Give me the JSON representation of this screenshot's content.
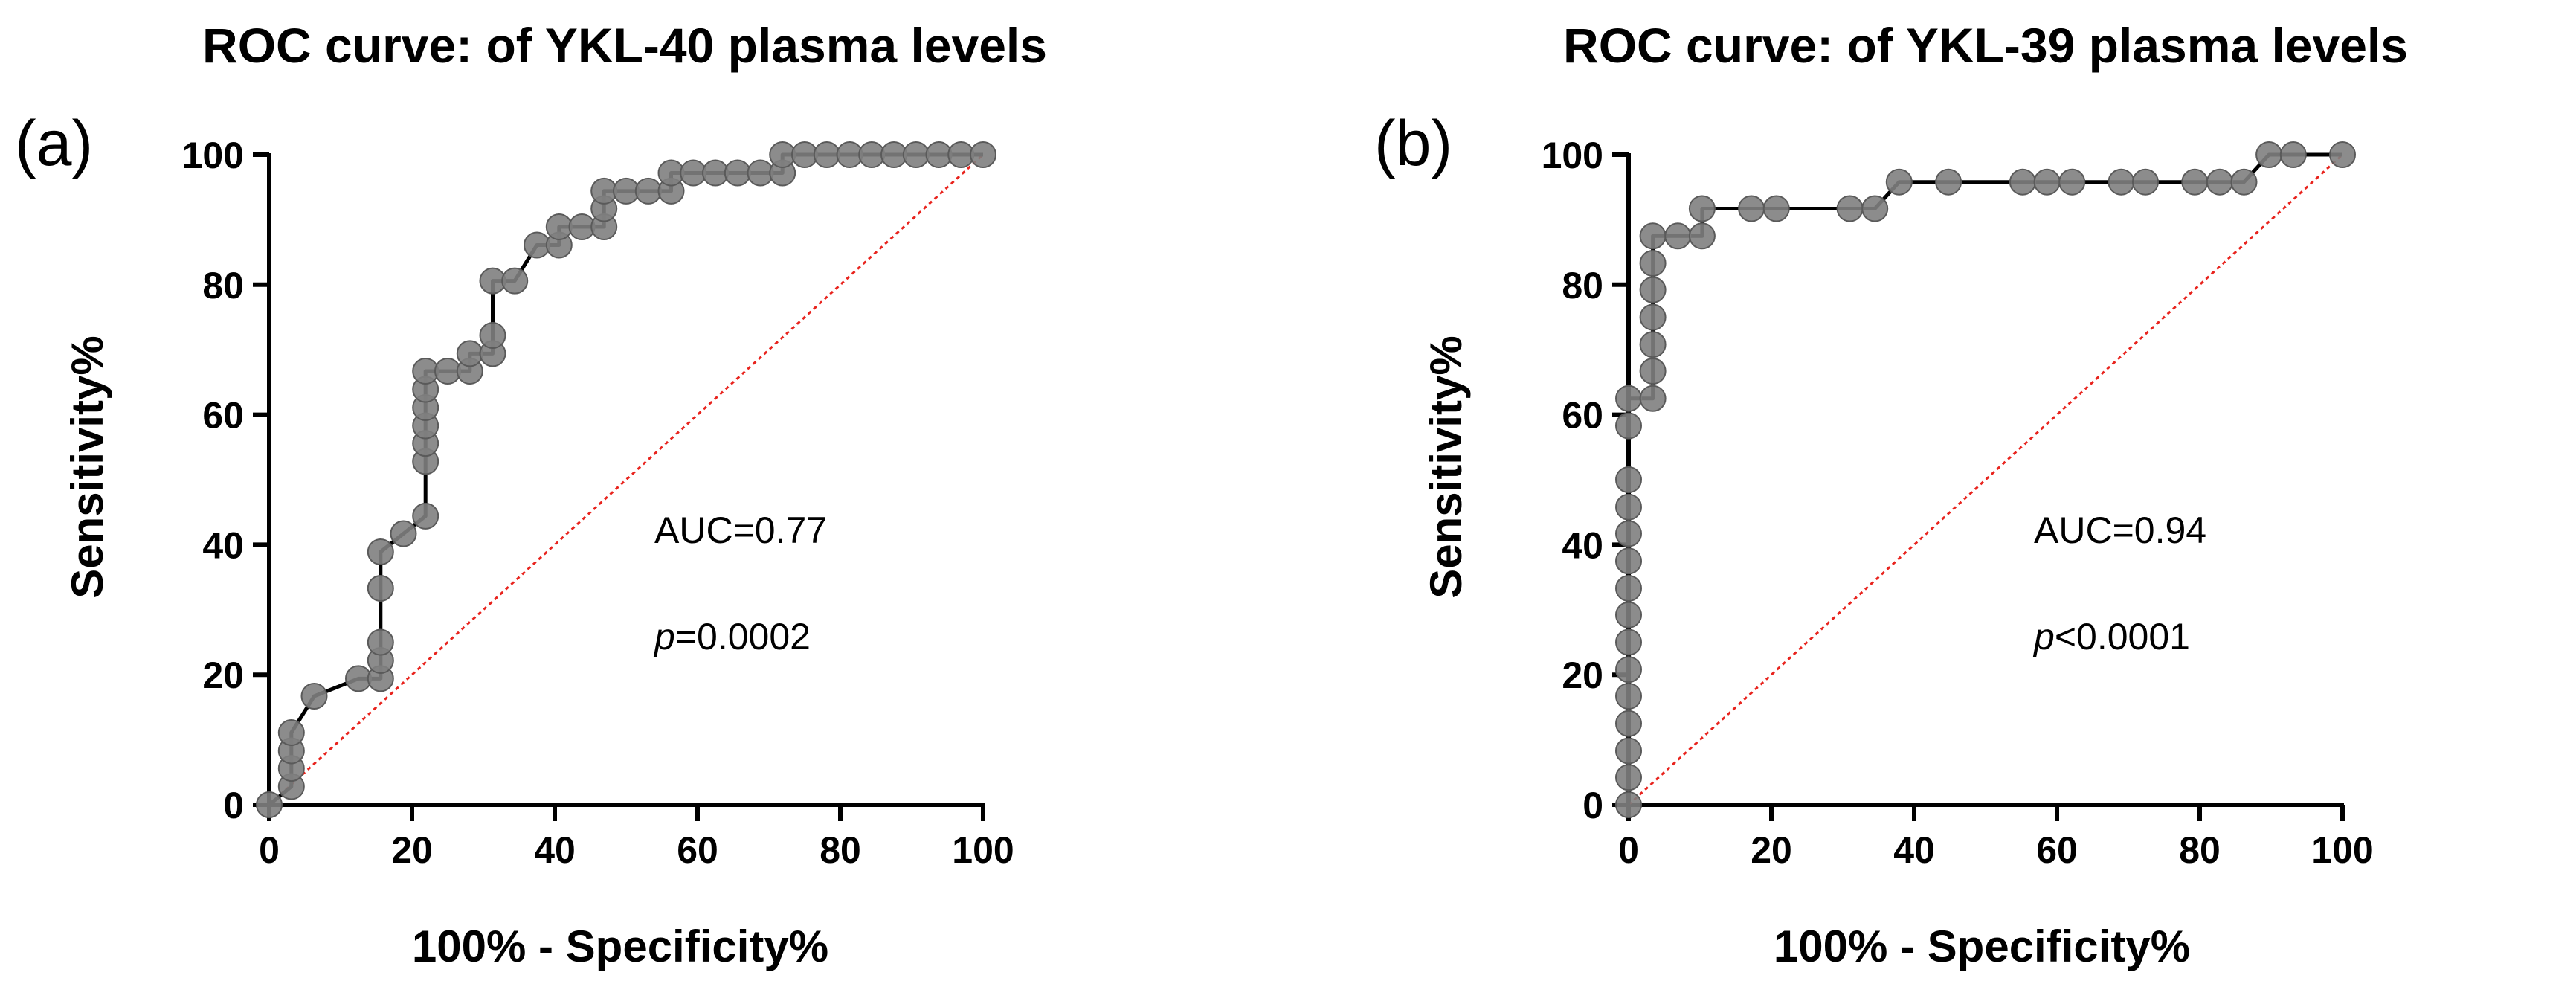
{
  "chart_data": [
    {
      "type": "line",
      "panel_label": "(a)",
      "title": "ROC curve: of YKL-40 plasma levels",
      "xlabel": "100% - Specificity%",
      "ylabel": "Sensitivity%",
      "xlim": [
        0,
        100
      ],
      "ylim": [
        0,
        100
      ],
      "xticks": [
        "0",
        "20",
        "40",
        "60",
        "80",
        "100"
      ],
      "yticks": [
        "0",
        "20",
        "40",
        "60",
        "80",
        "100"
      ],
      "auc_text": "AUC=0.77",
      "p_symbol": "p",
      "p_text": "=0.0002",
      "series": [
        {
          "name": "ROC",
          "points": [
            [
              0,
              0
            ],
            [
              3.1,
              2.8
            ],
            [
              3.1,
              5.6
            ],
            [
              3.1,
              8.3
            ],
            [
              3.1,
              11.1
            ],
            [
              6.3,
              16.7
            ],
            [
              12.5,
              19.4
            ],
            [
              15.6,
              19.4
            ],
            [
              15.6,
              22.2
            ],
            [
              15.6,
              25
            ],
            [
              15.6,
              33.3
            ],
            [
              15.6,
              38.9
            ],
            [
              18.8,
              41.7
            ],
            [
              21.9,
              44.4
            ],
            [
              21.9,
              52.8
            ],
            [
              21.9,
              55.6
            ],
            [
              21.9,
              58.3
            ],
            [
              21.9,
              61.1
            ],
            [
              21.9,
              63.9
            ],
            [
              21.9,
              66.7
            ],
            [
              25,
              66.7
            ],
            [
              28.1,
              66.7
            ],
            [
              28.1,
              69.4
            ],
            [
              31.3,
              69.4
            ],
            [
              31.3,
              72.2
            ],
            [
              31.3,
              80.6
            ],
            [
              34.4,
              80.6
            ],
            [
              37.5,
              86.1
            ],
            [
              40.6,
              86.1
            ],
            [
              40.6,
              88.9
            ],
            [
              43.8,
              88.9
            ],
            [
              46.9,
              88.9
            ],
            [
              46.9,
              91.7
            ],
            [
              46.9,
              94.4
            ],
            [
              50,
              94.4
            ],
            [
              53.1,
              94.4
            ],
            [
              56.3,
              94.4
            ],
            [
              56.3,
              97.2
            ],
            [
              59.4,
              97.2
            ],
            [
              62.5,
              97.2
            ],
            [
              65.6,
              97.2
            ],
            [
              68.8,
              97.2
            ],
            [
              71.9,
              97.2
            ],
            [
              71.9,
              100
            ],
            [
              75,
              100
            ],
            [
              78.1,
              100
            ],
            [
              81.3,
              100
            ],
            [
              84.4,
              100
            ],
            [
              87.5,
              100
            ],
            [
              90.6,
              100
            ],
            [
              93.8,
              100
            ],
            [
              96.9,
              100
            ],
            [
              100,
              100
            ]
          ]
        }
      ],
      "reference_line": [
        [
          0,
          0
        ],
        [
          100,
          100
        ]
      ],
      "line_color": "#000000",
      "marker_color": "#808080",
      "reference_color": "#e8231d"
    },
    {
      "type": "line",
      "panel_label": "(b)",
      "title": "ROC curve: of YKL-39 plasma levels",
      "xlabel": "100% - Specificity%",
      "ylabel": "Sensitivity%",
      "xlim": [
        0,
        100
      ],
      "ylim": [
        0,
        100
      ],
      "xticks": [
        "0",
        "20",
        "40",
        "60",
        "80",
        "100"
      ],
      "yticks": [
        "0",
        "20",
        "40",
        "60",
        "80",
        "100"
      ],
      "auc_text": "AUC=0.94",
      "p_symbol": "p",
      "p_text": "<0.0001",
      "series": [
        {
          "name": "ROC",
          "points": [
            [
              0,
              0
            ],
            [
              0,
              4.2
            ],
            [
              0,
              8.3
            ],
            [
              0,
              12.5
            ],
            [
              0,
              16.7
            ],
            [
              0,
              20.8
            ],
            [
              0,
              25
            ],
            [
              0,
              29.2
            ],
            [
              0,
              33.3
            ],
            [
              0,
              37.5
            ],
            [
              0,
              41.7
            ],
            [
              0,
              45.8
            ],
            [
              0,
              50
            ],
            [
              0,
              58.3
            ],
            [
              0,
              62.5
            ],
            [
              3.4,
              62.5
            ],
            [
              3.4,
              66.7
            ],
            [
              3.4,
              70.8
            ],
            [
              3.4,
              75
            ],
            [
              3.4,
              79.2
            ],
            [
              3.4,
              83.3
            ],
            [
              3.4,
              87.5
            ],
            [
              6.9,
              87.5
            ],
            [
              10.3,
              87.5
            ],
            [
              10.3,
              91.7
            ],
            [
              17.2,
              91.7
            ],
            [
              20.7,
              91.7
            ],
            [
              31,
              91.7
            ],
            [
              34.5,
              91.7
            ],
            [
              37.9,
              95.8
            ],
            [
              44.8,
              95.8
            ],
            [
              55.2,
              95.8
            ],
            [
              58.6,
              95.8
            ],
            [
              62.1,
              95.8
            ],
            [
              69,
              95.8
            ],
            [
              72.4,
              95.8
            ],
            [
              79.3,
              95.8
            ],
            [
              82.8,
              95.8
            ],
            [
              86.2,
              95.8
            ],
            [
              89.7,
              100
            ],
            [
              93.1,
              100
            ],
            [
              100,
              100
            ]
          ]
        }
      ],
      "reference_line": [
        [
          0,
          0
        ],
        [
          100,
          100
        ]
      ],
      "line_color": "#000000",
      "marker_color": "#808080",
      "reference_color": "#e8231d"
    }
  ]
}
